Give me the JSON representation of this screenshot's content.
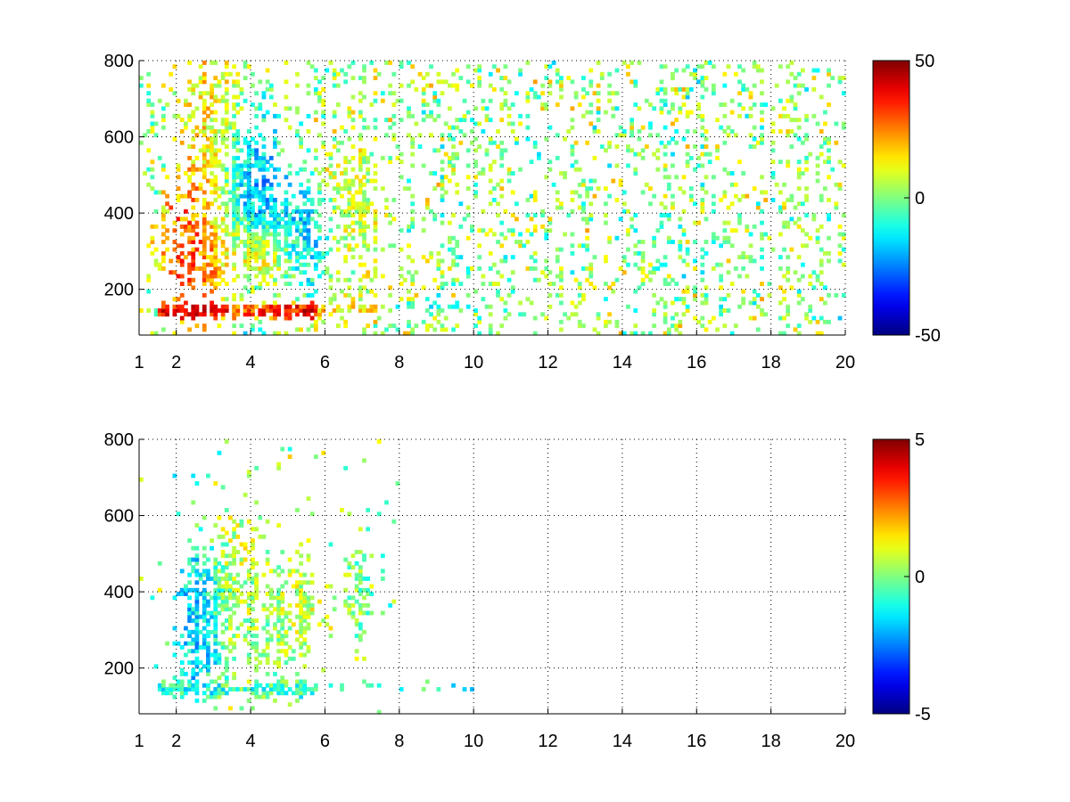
{
  "chart_data": [
    {
      "type": "heatmap",
      "title": "",
      "xlabel": "",
      "ylabel": "",
      "xlim": [
        1,
        20
      ],
      "ylim": [
        80,
        800
      ],
      "xticks": [
        1,
        2,
        4,
        6,
        8,
        10,
        12,
        14,
        16,
        18,
        20
      ],
      "yticks": [
        200,
        400,
        600,
        800
      ],
      "grid": true,
      "grid_style": "dotted",
      "colormap": "jet",
      "clim": [
        -50,
        50
      ],
      "colorbar_ticks": [
        50,
        0,
        -50
      ],
      "x_bins": 190,
      "y_bins": 72,
      "features": [
        {
          "name": "band",
          "x_range": [
            1.5,
            5.8
          ],
          "y": 145,
          "y_halfwidth": 12,
          "value": 42,
          "density": 0.95
        },
        {
          "name": "band",
          "x_range": [
            5.8,
            7.5
          ],
          "y": 150,
          "y_halfwidth": 10,
          "value": 18,
          "density": 0.7
        },
        {
          "name": "band",
          "x_range": [
            7.5,
            11.0
          ],
          "y": 150,
          "y_halfwidth": 8,
          "value": -8,
          "density": 0.4
        },
        {
          "name": "lobe",
          "x": 2.8,
          "y": 320,
          "sx": 0.55,
          "sy": 110,
          "value": 35,
          "density": 0.9
        },
        {
          "name": "lobe",
          "x": 3.0,
          "y": 600,
          "sx": 0.5,
          "sy": 200,
          "value": 15,
          "density": 0.75
        },
        {
          "name": "lobe",
          "x": 3.8,
          "y": 420,
          "sx": 0.5,
          "sy": 140,
          "value": -25,
          "density": 0.9
        },
        {
          "name": "lobe",
          "x": 4.2,
          "y": 290,
          "sx": 0.5,
          "sy": 50,
          "value": 35,
          "density": 0.9
        },
        {
          "name": "lobe",
          "x": 5.0,
          "y": 340,
          "sx": 0.6,
          "sy": 80,
          "value": -18,
          "density": 0.85
        },
        {
          "name": "lobe",
          "x": 6.8,
          "y": 420,
          "sx": 0.45,
          "sy": 120,
          "value": 8,
          "density": 0.6
        }
      ],
      "background": {
        "x_range": [
          1.0,
          20.0
        ],
        "values": [
          -8,
          12
        ],
        "density": 0.18
      }
    },
    {
      "type": "heatmap",
      "title": "",
      "xlabel": "",
      "ylabel": "",
      "xlim": [
        1,
        20
      ],
      "ylim": [
        80,
        800
      ],
      "xticks": [
        1,
        2,
        4,
        6,
        8,
        10,
        12,
        14,
        16,
        18,
        20
      ],
      "yticks": [
        200,
        400,
        600,
        800
      ],
      "grid": true,
      "grid_style": "dotted",
      "colormap": "jet",
      "clim": [
        -5,
        5
      ],
      "colorbar_ticks": [
        5,
        0,
        -5
      ],
      "x_bins": 190,
      "y_bins": 72,
      "features": [
        {
          "name": "band",
          "x_range": [
            1.5,
            5.8
          ],
          "y": 145,
          "y_halfwidth": 12,
          "value": -1,
          "density": 0.85
        },
        {
          "name": "band",
          "x_range": [
            5.8,
            10.2
          ],
          "y": 150,
          "y_halfwidth": 8,
          "value": -1,
          "density": 0.18
        },
        {
          "name": "lobe",
          "x": 2.8,
          "y": 330,
          "sx": 0.45,
          "sy": 110,
          "value": -2,
          "density": 0.8
        },
        {
          "name": "lobe",
          "x": 3.6,
          "y": 380,
          "sx": 0.45,
          "sy": 140,
          "value": 1,
          "density": 0.75
        },
        {
          "name": "lobe",
          "x": 4.5,
          "y": 320,
          "sx": 0.6,
          "sy": 90,
          "value": 0,
          "density": 0.6
        },
        {
          "name": "lobe",
          "x": 5.3,
          "y": 350,
          "sx": 0.4,
          "sy": 80,
          "value": 1,
          "density": 0.55
        },
        {
          "name": "lobe",
          "x": 6.9,
          "y": 420,
          "sx": 0.3,
          "sy": 100,
          "value": 0,
          "density": 0.4
        }
      ],
      "background": {
        "x_range": [
          1.0,
          8.0
        ],
        "values": [
          -1,
          1
        ],
        "density": 0.02
      }
    }
  ]
}
